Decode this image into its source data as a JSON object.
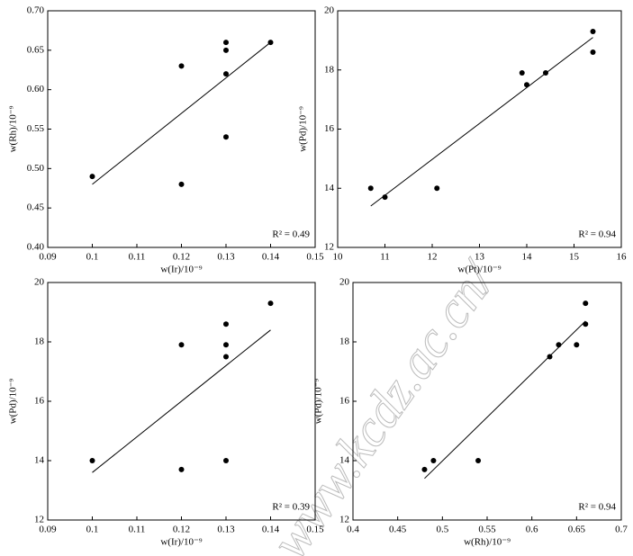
{
  "chart_data": [
    {
      "type": "scatter",
      "xlabel": "w(Ir)/10⁻⁹",
      "ylabel": "w(Rh)/10⁻⁹",
      "annotation": "R² = 0.49",
      "x": [
        0.1,
        0.12,
        0.12,
        0.13,
        0.13,
        0.13,
        0.13,
        0.14
      ],
      "values": [
        0.49,
        0.63,
        0.48,
        0.66,
        0.65,
        0.62,
        0.54,
        0.66
      ],
      "fit": {
        "x": [
          0.1,
          0.14
        ],
        "y": [
          0.48,
          0.66
        ]
      },
      "xlim": [
        0.09,
        0.15
      ],
      "xticks": [
        0.09,
        0.1,
        0.11,
        0.12,
        0.13,
        0.14,
        0.15
      ],
      "ylim": [
        0.4,
        0.7
      ],
      "yticks": [
        {
          "value": 0.4,
          "label": "0.40"
        },
        0.45,
        {
          "value": 0.5,
          "label": "0.50"
        },
        0.55,
        {
          "value": 0.6,
          "label": "0.60"
        },
        0.65,
        {
          "value": 0.7,
          "label": "0.70"
        }
      ],
      "color": "#000000"
    },
    {
      "type": "scatter",
      "xlabel": "w(Pt)/10⁻⁹",
      "ylabel": "w(Pd)/10⁻⁹",
      "annotation": "R² = 0.94",
      "x": [
        10.7,
        11.0,
        12.1,
        13.9,
        14.0,
        14.4,
        15.4,
        15.4
      ],
      "values": [
        14.0,
        13.7,
        14.0,
        17.9,
        17.5,
        17.9,
        19.3,
        18.6
      ],
      "fit": {
        "x": [
          10.7,
          15.4
        ],
        "y": [
          13.4,
          19.1
        ]
      },
      "xlim": [
        10,
        16
      ],
      "xticks": [
        10,
        11,
        12,
        13,
        14,
        15,
        16
      ],
      "ylim": [
        12,
        20
      ],
      "yticks": [
        12,
        14,
        16,
        18,
        20
      ],
      "color": "#000000"
    },
    {
      "type": "scatter",
      "xlabel": "w(Ir)/10⁻⁹",
      "ylabel": "w(Pd)/10⁻⁹",
      "annotation": "R² = 0.39",
      "x": [
        0.1,
        0.12,
        0.12,
        0.13,
        0.13,
        0.13,
        0.13,
        0.14
      ],
      "values": [
        14.0,
        17.9,
        13.7,
        18.6,
        17.9,
        17.5,
        14.0,
        19.3
      ],
      "fit": {
        "x": [
          0.1,
          0.14
        ],
        "y": [
          13.6,
          18.4
        ]
      },
      "xlim": [
        0.09,
        0.15
      ],
      "xticks": [
        0.09,
        0.1,
        0.11,
        0.12,
        0.13,
        0.14,
        0.15
      ],
      "ylim": [
        12,
        20
      ],
      "yticks": [
        12,
        14,
        16,
        18,
        20
      ],
      "color": "#000000"
    },
    {
      "type": "scatter",
      "xlabel": "w(Rh)/10⁻⁹",
      "ylabel": "w(Pd)/10⁻⁹",
      "annotation": "R² = 0.94",
      "x": [
        0.48,
        0.49,
        0.54,
        0.62,
        0.63,
        0.65,
        0.66,
        0.66
      ],
      "values": [
        13.7,
        14.0,
        14.0,
        17.5,
        17.9,
        17.9,
        19.3,
        18.6
      ],
      "fit": {
        "x": [
          0.48,
          0.66
        ],
        "y": [
          13.4,
          18.7
        ]
      },
      "xlim": [
        0.4,
        0.7
      ],
      "xticks": [
        0.4,
        0.45,
        0.5,
        0.55,
        0.6,
        0.65,
        0.7
      ],
      "ylim": [
        12,
        20
      ],
      "yticks": [
        12,
        14,
        16,
        18,
        20
      ],
      "color": "#000000"
    }
  ],
  "watermark": "www.kcdz.ac.cn/"
}
